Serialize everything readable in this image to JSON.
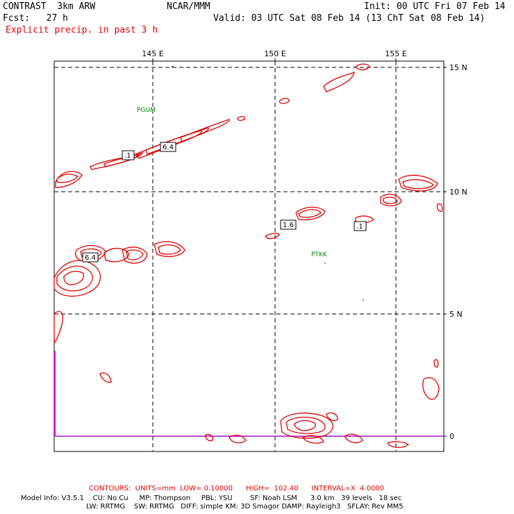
{
  "header": {
    "model": "CONTRAST  3km ARW",
    "org": "NCAR/MMM",
    "init": "Init: 00 UTC Fri 07 Feb 14",
    "fcst": "Fcst:   27 h",
    "valid": "Valid: 03 UTC Sat 08 Feb 14 (13 ChT Sat 08 Feb 14)",
    "field": "Explicit precip. in past 3 h"
  },
  "map": {
    "lon_labels": [
      "145 E",
      "150 E",
      "155 E"
    ],
    "lat_labels": [
      "15 N",
      "10 N",
      "5 N",
      "0"
    ],
    "stations": [
      {
        "id": "PGUM"
      },
      {
        "id": "PTKK"
      }
    ],
    "contour_labels": [
      ".1",
      "6.4",
      "6.4",
      "1.6",
      ".1"
    ]
  },
  "footer": {
    "contours": "CONTOURS:  UNITS=mm  LOW= 0.10000      HIGH=  102.40      INTERVAL=X  4.0000",
    "line1": "Model Info: V3.5.1    CU: No Cu     MP: Thompson     PBL: YSU        SF: Noah LSM      3.0 km   39 levels   18 sec",
    "line2": "LW: RRTMG    SW: RRTMG   DIFF: simple KM: 3D Smagor DAMP: Rayleigh3   SFLAY: Rev MM5"
  },
  "colors": {
    "contour": "#e00000",
    "grid": "#000000",
    "station": "#008000",
    "equator": "#cc00cc"
  }
}
